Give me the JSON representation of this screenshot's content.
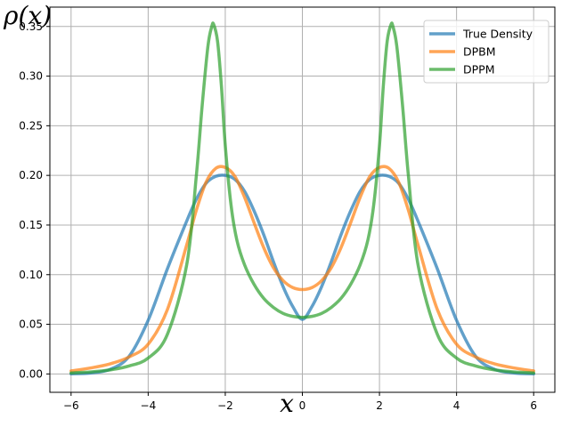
{
  "chart_data": {
    "type": "line",
    "xlabel": "x",
    "ylabel": "ρ(x)",
    "xlim": [
      -6.55,
      6.55
    ],
    "ylim": [
      -0.0185,
      0.3695
    ],
    "xticks": [
      -6,
      -4,
      -2,
      0,
      2,
      4,
      6
    ],
    "xtick_labels": [
      "−6",
      "−4",
      "−2",
      "0",
      "2",
      "4",
      "6"
    ],
    "yticks": [
      0.0,
      0.05,
      0.1,
      0.15,
      0.2,
      0.25,
      0.3,
      0.35
    ],
    "ytick_labels": [
      "0.00",
      "0.05",
      "0.10",
      "0.15",
      "0.20",
      "0.25",
      "0.30",
      "0.35"
    ],
    "grid": true,
    "legend_position": "top-right",
    "series": [
      {
        "name": "True Density",
        "color": "#1f77b4",
        "x": [
          -6,
          -5.5,
          -5,
          -4.5,
          -4,
          -3.5,
          -3,
          -2.75,
          -2.5,
          -2.25,
          -2,
          -1.75,
          -1.5,
          -1.25,
          -1,
          -0.75,
          -0.5,
          -0.25,
          0,
          0.25,
          0.5,
          0.75,
          1,
          1.25,
          1.5,
          1.75,
          2,
          2.25,
          2.5,
          2.75,
          3,
          3.5,
          4,
          4.5,
          5,
          5.5,
          6
        ],
        "y": [
          0.0001,
          0.0009,
          0.0044,
          0.0175,
          0.054,
          0.106,
          0.154,
          0.176,
          0.192,
          0.199,
          0.2,
          0.196,
          0.184,
          0.164,
          0.14,
          0.113,
          0.088,
          0.068,
          0.055,
          0.068,
          0.088,
          0.113,
          0.14,
          0.164,
          0.184,
          0.196,
          0.2,
          0.199,
          0.192,
          0.176,
          0.154,
          0.106,
          0.054,
          0.0175,
          0.0044,
          0.0009,
          0.0001
        ]
      },
      {
        "name": "DPBM",
        "color": "#ff7f0e",
        "x": [
          -6,
          -5.5,
          -5,
          -4.5,
          -4,
          -3.5,
          -3,
          -2.75,
          -2.5,
          -2.25,
          -2,
          -1.75,
          -1.5,
          -1.25,
          -1,
          -0.75,
          -0.5,
          -0.25,
          0,
          0.25,
          0.5,
          0.75,
          1,
          1.25,
          1.5,
          1.75,
          2,
          2.25,
          2.5,
          2.75,
          3,
          3.5,
          4,
          4.5,
          5,
          5.5,
          6
        ],
        "y": [
          0.003,
          0.006,
          0.01,
          0.017,
          0.03,
          0.065,
          0.13,
          0.165,
          0.193,
          0.207,
          0.208,
          0.199,
          0.178,
          0.152,
          0.127,
          0.107,
          0.094,
          0.087,
          0.085,
          0.087,
          0.094,
          0.107,
          0.127,
          0.152,
          0.178,
          0.199,
          0.208,
          0.207,
          0.193,
          0.165,
          0.13,
          0.065,
          0.03,
          0.017,
          0.01,
          0.006,
          0.003
        ]
      },
      {
        "name": "DPPM",
        "color": "#2ca02c",
        "x": [
          -6,
          -5.5,
          -5,
          -4.5,
          -4,
          -3.5,
          -3,
          -2.75,
          -2.6,
          -2.45,
          -2.35,
          -2.3,
          -2.2,
          -2.1,
          -2,
          -1.85,
          -1.7,
          -1.5,
          -1.25,
          -1,
          -0.75,
          -0.5,
          -0.25,
          0,
          0.25,
          0.5,
          0.75,
          1,
          1.25,
          1.5,
          1.7,
          1.85,
          2,
          2.1,
          2.2,
          2.3,
          2.35,
          2.45,
          2.6,
          2.75,
          3,
          3.5,
          4,
          4.5,
          5,
          5.5,
          6
        ],
        "y": [
          0.001,
          0.002,
          0.004,
          0.008,
          0.016,
          0.04,
          0.11,
          0.2,
          0.27,
          0.33,
          0.35,
          0.352,
          0.335,
          0.29,
          0.23,
          0.17,
          0.135,
          0.11,
          0.09,
          0.076,
          0.067,
          0.061,
          0.058,
          0.057,
          0.058,
          0.061,
          0.067,
          0.076,
          0.09,
          0.11,
          0.135,
          0.17,
          0.23,
          0.29,
          0.335,
          0.352,
          0.35,
          0.33,
          0.27,
          0.2,
          0.11,
          0.04,
          0.016,
          0.008,
          0.004,
          0.002,
          0.001
        ]
      }
    ]
  }
}
